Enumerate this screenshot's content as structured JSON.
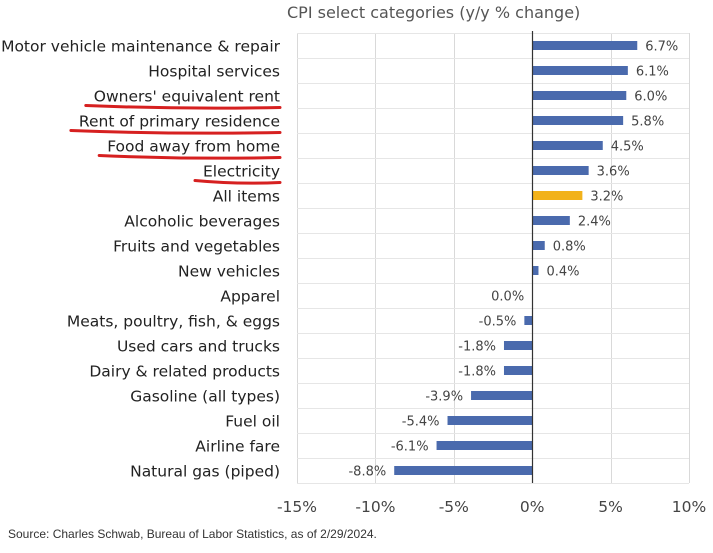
{
  "chart_data": {
    "type": "bar",
    "orientation": "horizontal",
    "title": "CPI select categories (y/y % change)",
    "categories": [
      "Motor vehicle maintenance & repair",
      "Hospital services",
      "Owners' equivalent rent",
      "Rent of primary residence",
      "Food away from home",
      "Electricity",
      "All items",
      "Alcoholic beverages",
      "Fruits and vegetables",
      "New vehicles",
      "Apparel",
      "Meats, poultry, fish, & eggs",
      "Used cars and trucks",
      "Dairy & related products",
      "Gasoline (all types)",
      "Fuel oil",
      "Airline fare",
      "Natural gas (piped)"
    ],
    "values": [
      6.7,
      6.1,
      6.0,
      5.8,
      4.5,
      3.6,
      3.2,
      2.4,
      0.8,
      0.4,
      0.0,
      -0.5,
      -1.8,
      -1.8,
      -3.9,
      -5.4,
      -6.1,
      -8.8
    ],
    "value_labels": [
      "6.7%",
      "6.1%",
      "6.0%",
      "5.8%",
      "4.5%",
      "3.6%",
      "3.2%",
      "2.4%",
      "0.8%",
      "0.4%",
      "0.0%",
      "-0.5%",
      "-1.8%",
      "-1.8%",
      "-3.9%",
      "-5.4%",
      "-6.1%",
      "-8.8%"
    ],
    "xlim": [
      -15,
      10
    ],
    "xticks": [
      -15,
      -10,
      -5,
      0,
      5,
      10
    ],
    "xtick_labels": [
      "-15%",
      "-10%",
      "-5%",
      "0%",
      "5%",
      "10%"
    ],
    "highlighted_category": "All items",
    "underlined_categories": [
      "Owners' equivalent rent",
      "Rent of primary residence",
      "Food away from home",
      "Electricity"
    ],
    "bar_color": "#4a6aad",
    "highlight_color": "#f2b21b",
    "underline_color": "#d62020",
    "grid": "vertical",
    "legend": "none"
  },
  "source": "Source: Charles Schwab, Bureau of Labor Statistics, as of 2/29/2024."
}
